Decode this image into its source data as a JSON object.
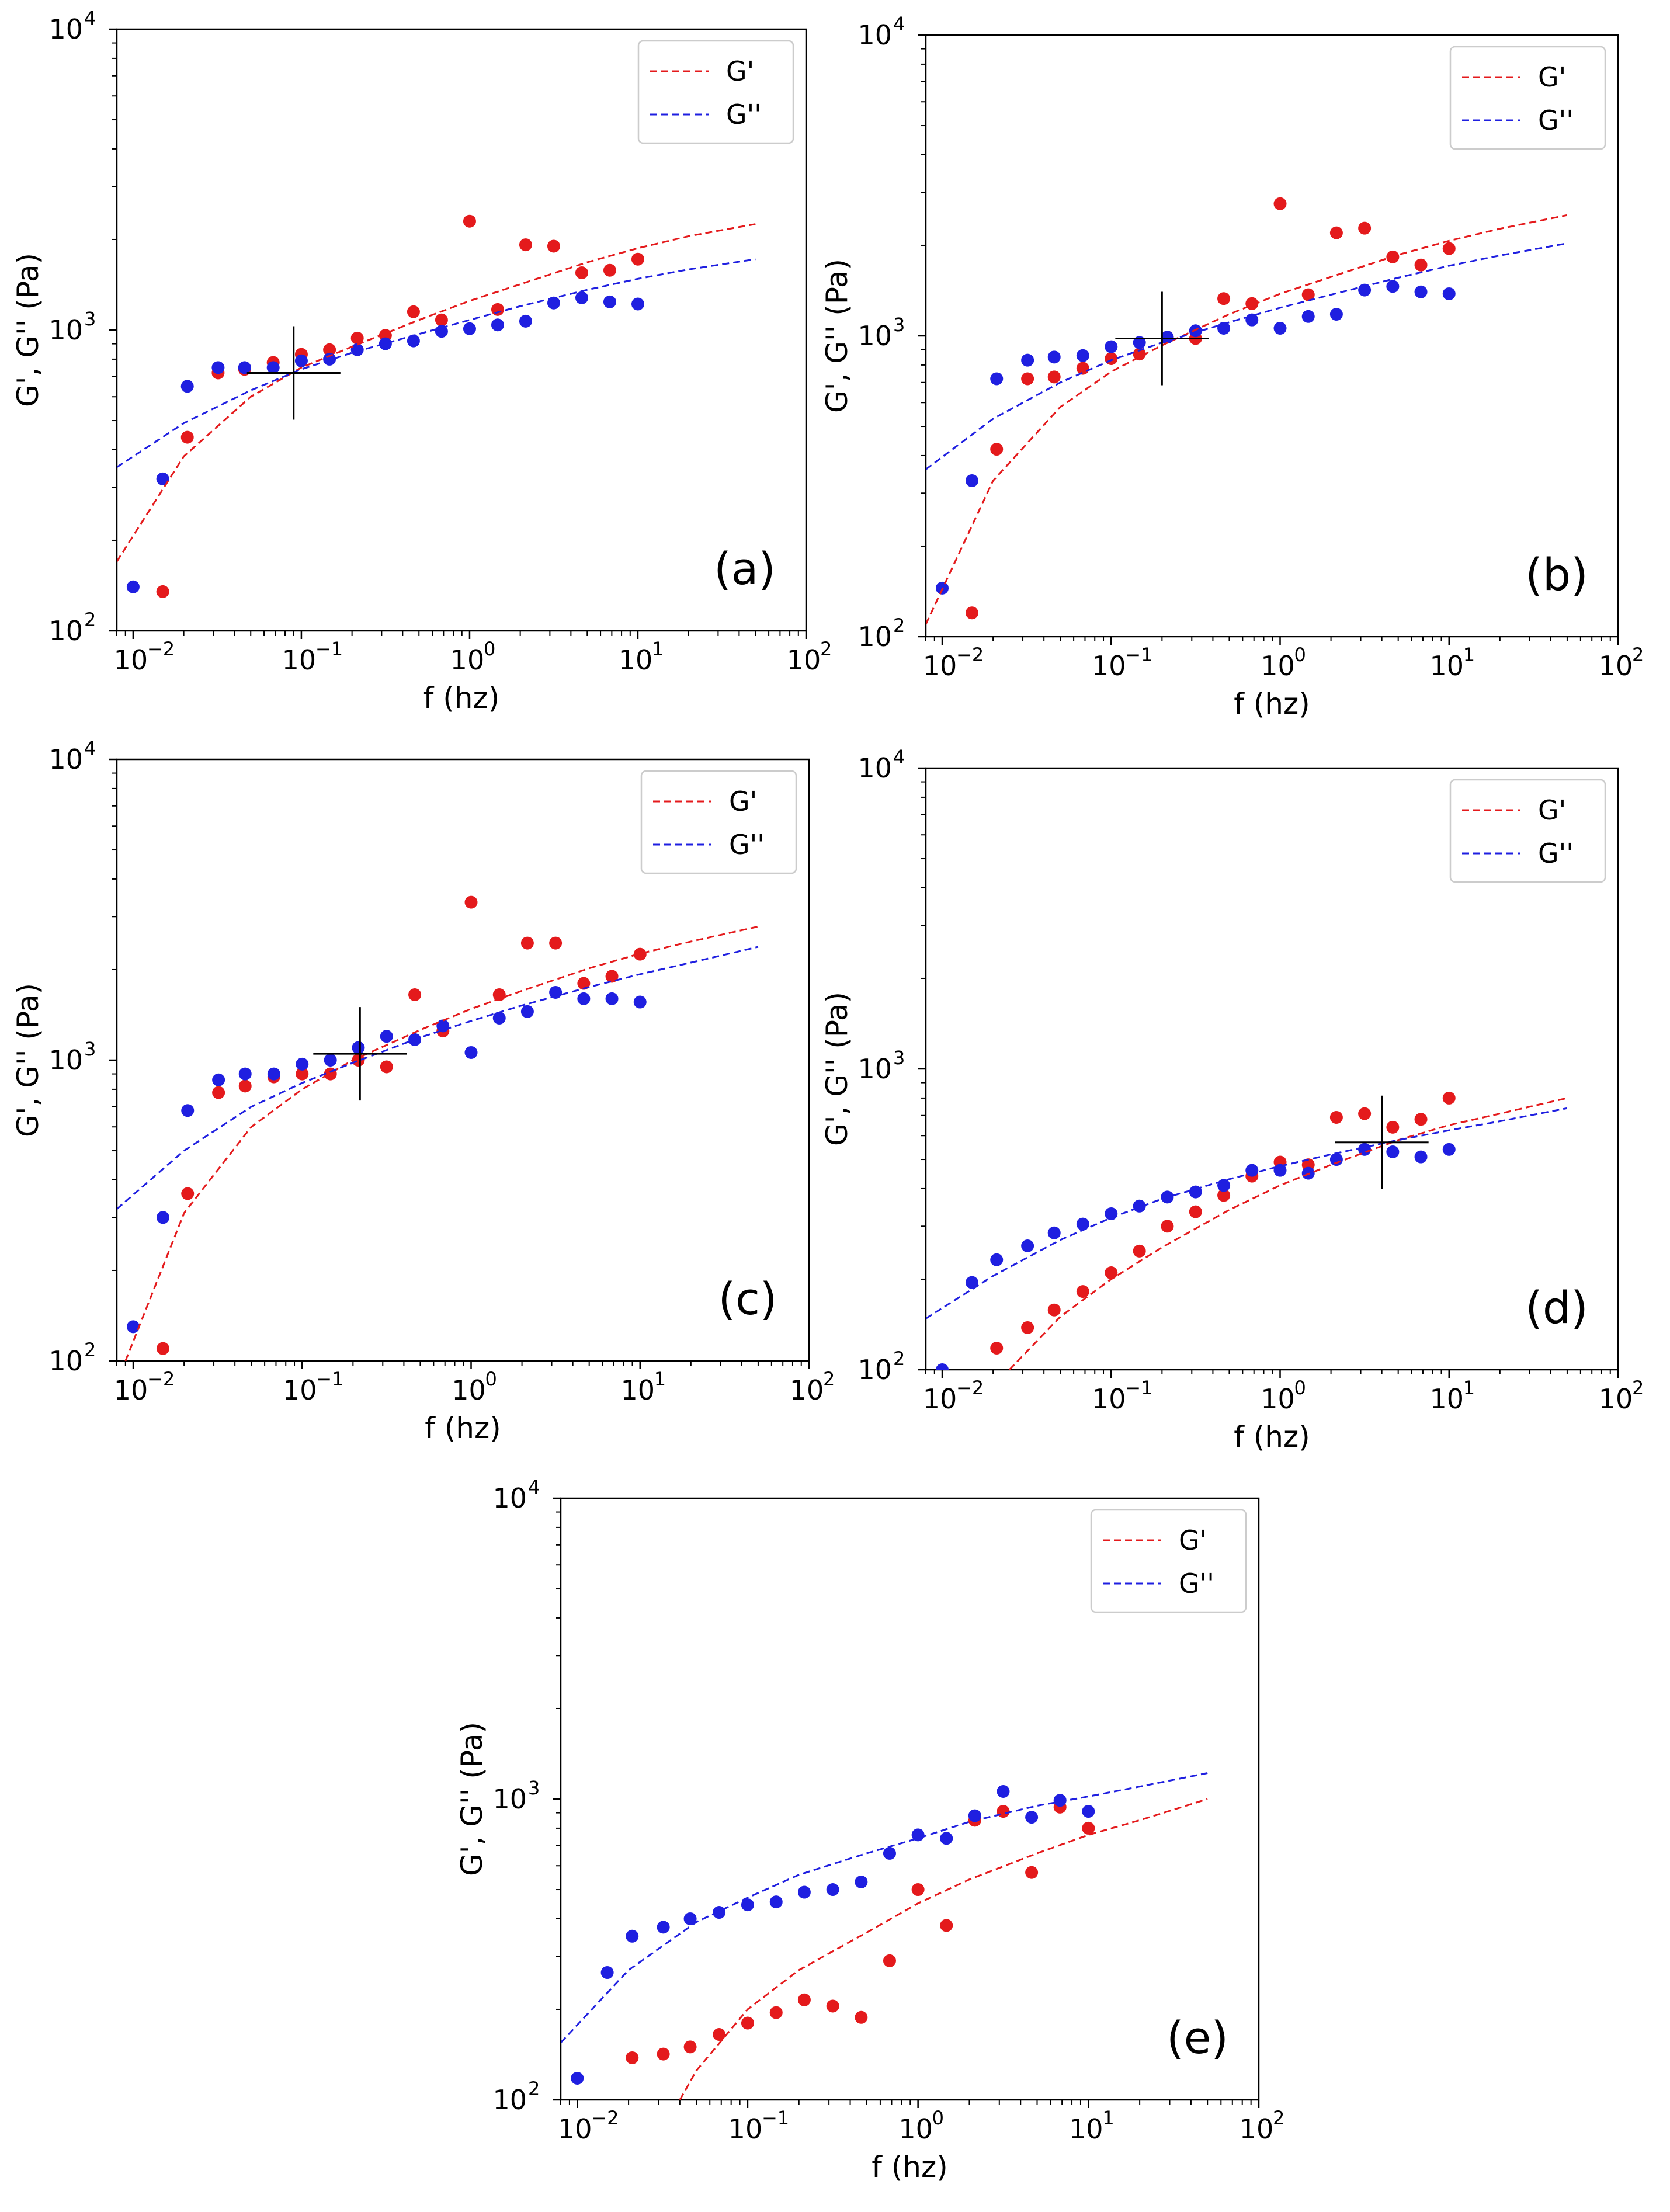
{
  "legend": {
    "g_prime": "G'",
    "g_double_prime": "G''"
  },
  "colors": {
    "g_prime": "#e41a1c",
    "g_double_prime": "#1f1fe0",
    "crosshair": "#000000"
  },
  "chart_data": [
    {
      "panel": "(a)",
      "type": "scatter",
      "xlabel": "f (hz)",
      "ylabel": "G', G'' (Pa)",
      "xscale": "log",
      "yscale": "log",
      "xlim": [
        0.008,
        100
      ],
      "ylim": [
        100,
        10000
      ],
      "x_ticks": [
        "10^-2",
        "10^-1",
        "10^0",
        "10^1",
        "10^2"
      ],
      "y_ticks": [
        "10^2",
        "10^3",
        "10^4"
      ],
      "legend_position": "top-right",
      "crossover": {
        "f": 0.09,
        "G": 720
      },
      "series": [
        {
          "name": "G'",
          "style": "points",
          "x": [
            0.01,
            0.015,
            0.021,
            0.032,
            0.046,
            0.068,
            0.1,
            0.147,
            0.215,
            0.316,
            0.464,
            0.681,
            1.0,
            1.468,
            2.154,
            3.162,
            4.642,
            6.813,
            10.0
          ],
          "y": [
            null,
            135,
            440,
            720,
            740,
            780,
            830,
            860,
            940,
            960,
            1150,
            1080,
            2300,
            1170,
            1920,
            1900,
            1550,
            1580,
            1720
          ]
        },
        {
          "name": "G''",
          "style": "points",
          "x": [
            0.01,
            0.015,
            0.021,
            0.032,
            0.046,
            0.068,
            0.1,
            0.147,
            0.215,
            0.316,
            0.464,
            0.681,
            1.0,
            1.468,
            2.154,
            3.162,
            4.642,
            6.813,
            10.0
          ],
          "y": [
            140,
            320,
            650,
            750,
            750,
            750,
            790,
            800,
            860,
            900,
            920,
            990,
            1010,
            1040,
            1070,
            1230,
            1280,
            1240,
            1220
          ]
        },
        {
          "name": "G' fit",
          "style": "dashed",
          "x": [
            0.008,
            0.02,
            0.05,
            0.1,
            0.2,
            0.5,
            1,
            2,
            5,
            10,
            20,
            50
          ],
          "y": [
            170,
            380,
            600,
            750,
            880,
            1080,
            1250,
            1420,
            1680,
            1870,
            2050,
            2250
          ]
        },
        {
          "name": "G'' fit",
          "style": "dashed",
          "x": [
            0.008,
            0.02,
            0.05,
            0.1,
            0.2,
            0.5,
            1,
            2,
            5,
            10,
            20,
            50
          ],
          "y": [
            350,
            490,
            630,
            740,
            840,
            970,
            1080,
            1200,
            1360,
            1480,
            1590,
            1720
          ]
        }
      ]
    },
    {
      "panel": "(b)",
      "type": "scatter",
      "xlabel": "f (hz)",
      "ylabel": "G', G'' (Pa)",
      "xscale": "log",
      "yscale": "log",
      "xlim": [
        0.008,
        100
      ],
      "ylim": [
        100,
        10000
      ],
      "x_ticks": [
        "10^-2",
        "10^-1",
        "10^0",
        "10^1",
        "10^2"
      ],
      "y_ticks": [
        "10^2",
        "10^3",
        "10^4"
      ],
      "legend_position": "top-right",
      "crossover": {
        "f": 0.2,
        "G": 980
      },
      "series": [
        {
          "name": "G'",
          "style": "points",
          "x": [
            0.01,
            0.015,
            0.021,
            0.032,
            0.046,
            0.068,
            0.1,
            0.147,
            0.215,
            0.316,
            0.464,
            0.681,
            1.0,
            1.468,
            2.154,
            3.162,
            4.642,
            6.813,
            10.0
          ],
          "y": [
            null,
            120,
            420,
            720,
            730,
            780,
            840,
            870,
            990,
            980,
            1330,
            1280,
            2750,
            1370,
            2200,
            2280,
            1830,
            1720,
            1950
          ]
        },
        {
          "name": "G''",
          "style": "points",
          "x": [
            0.01,
            0.015,
            0.021,
            0.032,
            0.046,
            0.068,
            0.1,
            0.147,
            0.215,
            0.316,
            0.464,
            0.681,
            1.0,
            1.468,
            2.154,
            3.162,
            4.642,
            6.813,
            10.0
          ],
          "y": [
            145,
            330,
            720,
            830,
            850,
            860,
            920,
            950,
            990,
            1040,
            1060,
            1130,
            1060,
            1160,
            1180,
            1420,
            1460,
            1400,
            1380
          ]
        },
        {
          "name": "G' fit",
          "style": "dashed",
          "x": [
            0.008,
            0.02,
            0.05,
            0.1,
            0.2,
            0.5,
            1,
            2,
            5,
            10,
            20,
            50
          ],
          "y": [
            110,
            330,
            580,
            760,
            930,
            1180,
            1380,
            1570,
            1860,
            2070,
            2270,
            2520
          ]
        },
        {
          "name": "G'' fit",
          "style": "dashed",
          "x": [
            0.008,
            0.02,
            0.05,
            0.1,
            0.2,
            0.5,
            1,
            2,
            5,
            10,
            20,
            50
          ],
          "y": [
            360,
            530,
            700,
            830,
            950,
            1110,
            1240,
            1370,
            1560,
            1710,
            1850,
            2030
          ]
        }
      ]
    },
    {
      "panel": "(c)",
      "type": "scatter",
      "xlabel": "f (hz)",
      "ylabel": "G', G'' (Pa)",
      "xscale": "log",
      "yscale": "log",
      "xlim": [
        0.008,
        100
      ],
      "ylim": [
        100,
        10000
      ],
      "x_ticks": [
        "10^-2",
        "10^-1",
        "10^0",
        "10^1",
        "10^2"
      ],
      "y_ticks": [
        "10^2",
        "10^3",
        "10^4"
      ],
      "legend_position": "top-right",
      "crossover": {
        "f": 0.22,
        "G": 1050
      },
      "series": [
        {
          "name": "G'",
          "style": "points",
          "x": [
            0.01,
            0.015,
            0.021,
            0.032,
            0.046,
            0.068,
            0.1,
            0.147,
            0.215,
            0.316,
            0.464,
            0.681,
            1.0,
            1.468,
            2.154,
            3.162,
            4.642,
            6.813,
            10.0
          ],
          "y": [
            null,
            110,
            360,
            780,
            820,
            880,
            900,
            900,
            1000,
            950,
            1650,
            1250,
            3350,
            1650,
            2450,
            2450,
            1800,
            1900,
            2250
          ]
        },
        {
          "name": "G''",
          "style": "points",
          "x": [
            0.01,
            0.015,
            0.021,
            0.032,
            0.046,
            0.068,
            0.1,
            0.147,
            0.215,
            0.316,
            0.464,
            0.681,
            1.0,
            1.468,
            2.154,
            3.162,
            4.642,
            6.813,
            10.0
          ],
          "y": [
            130,
            300,
            680,
            860,
            900,
            900,
            970,
            1000,
            1100,
            1200,
            1170,
            1300,
            1060,
            1380,
            1450,
            1680,
            1600,
            1600,
            1560
          ]
        },
        {
          "name": "G' fit",
          "style": "dashed",
          "x": [
            0.009,
            0.02,
            0.05,
            0.1,
            0.2,
            0.5,
            1,
            2,
            5,
            10,
            20,
            50
          ],
          "y": [
            100,
            310,
            600,
            800,
            1000,
            1260,
            1480,
            1700,
            2020,
            2260,
            2480,
            2780
          ]
        },
        {
          "name": "G'' fit",
          "style": "dashed",
          "x": [
            0.008,
            0.02,
            0.05,
            0.1,
            0.2,
            0.5,
            1,
            2,
            5,
            10,
            20,
            50
          ],
          "y": [
            320,
            500,
            700,
            840,
            980,
            1190,
            1350,
            1520,
            1750,
            1930,
            2110,
            2380
          ]
        }
      ]
    },
    {
      "panel": "(d)",
      "type": "scatter",
      "xlabel": "f (hz)",
      "ylabel": "G', G'' (Pa)",
      "xscale": "log",
      "yscale": "log",
      "xlim": [
        0.008,
        100
      ],
      "ylim": [
        100,
        10000
      ],
      "x_ticks": [
        "10^-2",
        "10^-1",
        "10^0",
        "10^1",
        "10^2"
      ],
      "y_ticks": [
        "10^2",
        "10^3",
        "10^4"
      ],
      "legend_position": "top-right",
      "crossover": {
        "f": 4.0,
        "G": 570
      },
      "series": [
        {
          "name": "G'",
          "style": "points",
          "x": [
            0.01,
            0.015,
            0.021,
            0.032,
            0.046,
            0.068,
            0.1,
            0.147,
            0.215,
            0.316,
            0.464,
            0.681,
            1.0,
            1.468,
            2.154,
            3.162,
            4.642,
            6.813,
            10.0
          ],
          "y": [
            null,
            null,
            118,
            138,
            158,
            182,
            210,
            248,
            300,
            335,
            380,
            440,
            490,
            480,
            690,
            710,
            640,
            680,
            800
          ]
        },
        {
          "name": "G''",
          "style": "points",
          "x": [
            0.01,
            0.015,
            0.021,
            0.032,
            0.046,
            0.068,
            0.1,
            0.147,
            0.215,
            0.316,
            0.464,
            0.681,
            1.0,
            1.468,
            2.154,
            3.162,
            4.642,
            6.813,
            10.0
          ],
          "y": [
            100,
            195,
            232,
            258,
            285,
            305,
            330,
            350,
            375,
            390,
            410,
            460,
            460,
            450,
            500,
            540,
            530,
            510,
            540
          ]
        },
        {
          "name": "G' fit",
          "style": "dashed",
          "x": [
            0.025,
            0.05,
            0.1,
            0.2,
            0.5,
            1,
            2,
            5,
            10,
            20,
            50
          ],
          "y": [
            100,
            150,
            200,
            255,
            340,
            410,
            480,
            580,
            650,
            710,
            800
          ]
        },
        {
          "name": "G'' fit",
          "style": "dashed",
          "x": [
            0.008,
            0.02,
            0.05,
            0.1,
            0.2,
            0.5,
            1,
            2,
            5,
            10,
            20,
            50
          ],
          "y": [
            148,
            205,
            270,
            320,
            370,
            430,
            475,
            520,
            580,
            625,
            670,
            740
          ]
        }
      ]
    },
    {
      "panel": "(e)",
      "type": "scatter",
      "xlabel": "f (hz)",
      "ylabel": "G', G'' (Pa)",
      "xscale": "log",
      "yscale": "log",
      "xlim": [
        0.008,
        100
      ],
      "ylim": [
        100,
        10000
      ],
      "x_ticks": [
        "10^-2",
        "10^-1",
        "10^0",
        "10^1",
        "10^2"
      ],
      "y_ticks": [
        "10^2",
        "10^3",
        "10^4"
      ],
      "legend_position": "top-right",
      "crossover": null,
      "series": [
        {
          "name": "G'",
          "style": "points",
          "x": [
            0.01,
            0.015,
            0.021,
            0.032,
            0.046,
            0.068,
            0.1,
            0.147,
            0.215,
            0.316,
            0.464,
            0.681,
            1.0,
            1.468,
            2.154,
            3.162,
            4.642,
            6.813,
            10.0
          ],
          "y": [
            null,
            null,
            138,
            142,
            150,
            165,
            180,
            195,
            215,
            205,
            188,
            290,
            500,
            380,
            850,
            910,
            570,
            940,
            800
          ]
        },
        {
          "name": "G''",
          "style": "points",
          "x": [
            0.01,
            0.015,
            0.021,
            0.032,
            0.046,
            0.068,
            0.1,
            0.147,
            0.215,
            0.316,
            0.464,
            0.681,
            1.0,
            1.468,
            2.154,
            3.162,
            4.642,
            6.813,
            10.0
          ],
          "y": [
            118,
            265,
            350,
            375,
            400,
            420,
            445,
            455,
            490,
            500,
            530,
            660,
            760,
            740,
            880,
            1060,
            870,
            990,
            910
          ]
        },
        {
          "name": "G' fit",
          "style": "dashed",
          "x": [
            0.04,
            0.05,
            0.1,
            0.2,
            0.5,
            1,
            2,
            5,
            10,
            20,
            50
          ],
          "y": [
            100,
            125,
            200,
            270,
            360,
            450,
            540,
            660,
            760,
            850,
            1000
          ]
        },
        {
          "name": "G'' fit",
          "style": "dashed",
          "x": [
            0.008,
            0.02,
            0.05,
            0.1,
            0.2,
            0.5,
            1,
            2,
            5,
            10,
            20,
            50
          ],
          "y": [
            155,
            270,
            390,
            470,
            560,
            660,
            740,
            840,
            950,
            1020,
            1100,
            1220
          ]
        }
      ]
    }
  ]
}
